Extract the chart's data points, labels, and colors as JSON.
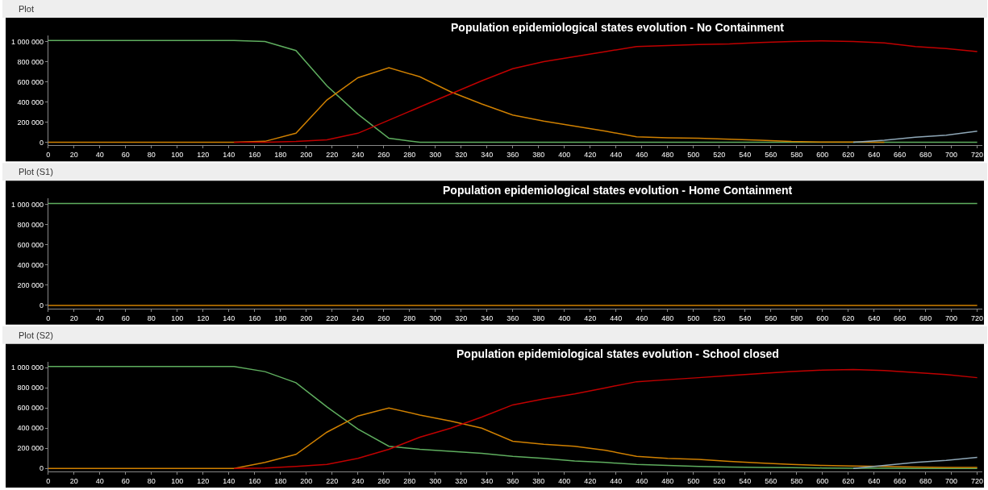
{
  "chart_data": [
    {
      "type": "line",
      "title": "Population epidemiological states evolution - No Containment",
      "annotations": [
        "Plot"
      ],
      "x": [
        0,
        24,
        48,
        72,
        96,
        120,
        144,
        168,
        192,
        216,
        240,
        264,
        288,
        312,
        336,
        360,
        384,
        408,
        432,
        456,
        480,
        504,
        528,
        552,
        576,
        600,
        624,
        648,
        672,
        696,
        720
      ],
      "series": [
        {
          "color": "#5fae5f",
          "values": [
            1010000,
            1010000,
            1010000,
            1010000,
            1010000,
            1010000,
            1010000,
            1000000,
            910000,
            560000,
            280000,
            40000,
            0,
            0,
            0,
            0,
            0,
            0,
            0,
            0,
            0,
            0,
            0,
            0,
            0,
            0,
            0,
            0,
            0,
            0,
            0
          ]
        },
        {
          "color": "#d08000",
          "values": [
            0,
            0,
            0,
            0,
            0,
            0,
            0,
            10000,
            90000,
            420000,
            640000,
            740000,
            650000,
            500000,
            380000,
            270000,
            210000,
            160000,
            110000,
            55000,
            45000,
            40000,
            30000,
            20000,
            8000,
            3000,
            2000,
            0,
            null,
            null,
            null
          ]
        },
        {
          "color": "#c00000",
          "values": [
            null,
            null,
            null,
            null,
            null,
            null,
            0,
            0,
            8000,
            25000,
            90000,
            220000,
            350000,
            480000,
            610000,
            730000,
            800000,
            850000,
            900000,
            950000,
            960000,
            970000,
            975000,
            990000,
            1000000,
            1005000,
            1000000,
            985000,
            950000,
            930000,
            900000
          ]
        },
        {
          "color": "#8fa8b8",
          "values": [
            null,
            null,
            null,
            null,
            null,
            null,
            null,
            null,
            null,
            null,
            null,
            null,
            null,
            null,
            null,
            null,
            null,
            null,
            null,
            null,
            null,
            null,
            null,
            null,
            null,
            null,
            0,
            20000,
            50000,
            70000,
            110000
          ]
        }
      ],
      "xlim": [
        0,
        724
      ],
      "ylim": [
        -30000,
        1060000
      ],
      "xticks": [
        0,
        20,
        40,
        60,
        80,
        100,
        120,
        140,
        160,
        180,
        200,
        220,
        240,
        260,
        280,
        300,
        320,
        340,
        360,
        380,
        400,
        420,
        440,
        460,
        480,
        500,
        520,
        540,
        560,
        580,
        600,
        620,
        640,
        660,
        680,
        700,
        720
      ],
      "yticks": [
        0,
        {
          "value": 200000,
          "label": "200 000"
        },
        {
          "value": 400000,
          "label": "400 000"
        },
        {
          "value": 600000,
          "label": "600 000"
        },
        {
          "value": 800000,
          "label": "800 000"
        },
        {
          "value": 1000000,
          "label": "1 000 000"
        }
      ],
      "grid": false,
      "marker": "none",
      "line_style": "solid"
    },
    {
      "type": "line",
      "title": "Population epidemiological states evolution - Home Containment",
      "annotations": [
        "Plot (S1)"
      ],
      "x": [
        0,
        24,
        48,
        72,
        96,
        120,
        144,
        168,
        192,
        216,
        240,
        264,
        288,
        312,
        336,
        360,
        384,
        408,
        432,
        456,
        480,
        504,
        528,
        552,
        576,
        600,
        624,
        648,
        672,
        696,
        720
      ],
      "series": [
        {
          "color": "#5fae5f",
          "values": [
            1010000,
            1010000,
            1010000,
            1010000,
            1010000,
            1010000,
            1010000,
            1010000,
            1010000,
            1010000,
            1010000,
            1010000,
            1010000,
            1010000,
            1010000,
            1010000,
            1010000,
            1010000,
            1010000,
            1010000,
            1010000,
            1010000,
            1010000,
            1010000,
            1010000,
            1010000,
            1010000,
            1010000,
            1010000,
            1010000,
            1010000
          ]
        },
        {
          "color": "#d08000",
          "values": [
            0,
            0,
            0,
            0,
            0,
            0,
            0,
            0,
            0,
            0,
            0,
            0,
            0,
            0,
            0,
            0,
            0,
            0,
            0,
            0,
            0,
            0,
            0,
            0,
            0,
            0,
            0,
            0,
            0,
            0,
            0
          ]
        }
      ],
      "xlim": [
        0,
        724
      ],
      "ylim": [
        -30000,
        1060000
      ],
      "xticks": [
        0,
        20,
        40,
        60,
        80,
        100,
        120,
        140,
        160,
        180,
        200,
        220,
        240,
        260,
        280,
        300,
        320,
        340,
        360,
        380,
        400,
        420,
        440,
        460,
        480,
        500,
        520,
        540,
        560,
        580,
        600,
        620,
        640,
        660,
        680,
        700,
        720
      ],
      "yticks": [
        0,
        {
          "value": 200000,
          "label": "200 000"
        },
        {
          "value": 400000,
          "label": "400 000"
        },
        {
          "value": 600000,
          "label": "600 000"
        },
        {
          "value": 800000,
          "label": "800 000"
        },
        {
          "value": 1000000,
          "label": "1 000 000"
        }
      ],
      "grid": false,
      "marker": "none",
      "line_style": "solid"
    },
    {
      "type": "line",
      "title": "Population epidemiological states evolution - School closed",
      "annotations": [
        "Plot (S2)"
      ],
      "x": [
        0,
        24,
        48,
        72,
        96,
        120,
        144,
        168,
        192,
        216,
        240,
        264,
        288,
        312,
        336,
        360,
        384,
        408,
        432,
        456,
        480,
        504,
        528,
        552,
        576,
        600,
        624,
        648,
        672,
        696,
        720
      ],
      "series": [
        {
          "color": "#5fae5f",
          "values": [
            1010000,
            1010000,
            1010000,
            1010000,
            1010000,
            1010000,
            1010000,
            960000,
            850000,
            610000,
            390000,
            220000,
            190000,
            170000,
            150000,
            120000,
            100000,
            75000,
            60000,
            40000,
            30000,
            20000,
            15000,
            10000,
            8000,
            5000,
            3000,
            2000,
            1000,
            0,
            0
          ]
        },
        {
          "color": "#d08000",
          "values": [
            0,
            0,
            0,
            0,
            0,
            0,
            0,
            60000,
            140000,
            360000,
            520000,
            600000,
            530000,
            470000,
            400000,
            270000,
            240000,
            220000,
            180000,
            120000,
            100000,
            90000,
            70000,
            55000,
            40000,
            30000,
            25000,
            20000,
            15000,
            10000,
            10000
          ]
        },
        {
          "color": "#c00000",
          "values": [
            null,
            null,
            null,
            null,
            null,
            null,
            0,
            5000,
            20000,
            40000,
            100000,
            190000,
            310000,
            400000,
            510000,
            630000,
            690000,
            740000,
            800000,
            860000,
            880000,
            900000,
            920000,
            940000,
            960000,
            975000,
            980000,
            970000,
            950000,
            930000,
            900000
          ]
        },
        {
          "color": "#8fa8b8",
          "values": [
            null,
            null,
            null,
            null,
            null,
            null,
            null,
            null,
            null,
            null,
            null,
            null,
            null,
            null,
            null,
            null,
            null,
            null,
            null,
            null,
            null,
            null,
            null,
            null,
            null,
            null,
            0,
            30000,
            60000,
            80000,
            110000
          ]
        }
      ],
      "xlim": [
        0,
        724
      ],
      "ylim": [
        -30000,
        1060000
      ],
      "xticks": [
        0,
        20,
        40,
        60,
        80,
        100,
        120,
        140,
        160,
        180,
        200,
        220,
        240,
        260,
        280,
        300,
        320,
        340,
        360,
        380,
        400,
        420,
        440,
        460,
        480,
        500,
        520,
        540,
        560,
        580,
        600,
        620,
        640,
        660,
        680,
        700,
        720
      ],
      "yticks": [
        0,
        {
          "value": 200000,
          "label": "200 000"
        },
        {
          "value": 400000,
          "label": "400 000"
        },
        {
          "value": 600000,
          "label": "600 000"
        },
        {
          "value": 800000,
          "label": "800 000"
        },
        {
          "value": 1000000,
          "label": "1 000 000"
        }
      ],
      "grid": false,
      "marker": "none",
      "line_style": "solid"
    }
  ]
}
